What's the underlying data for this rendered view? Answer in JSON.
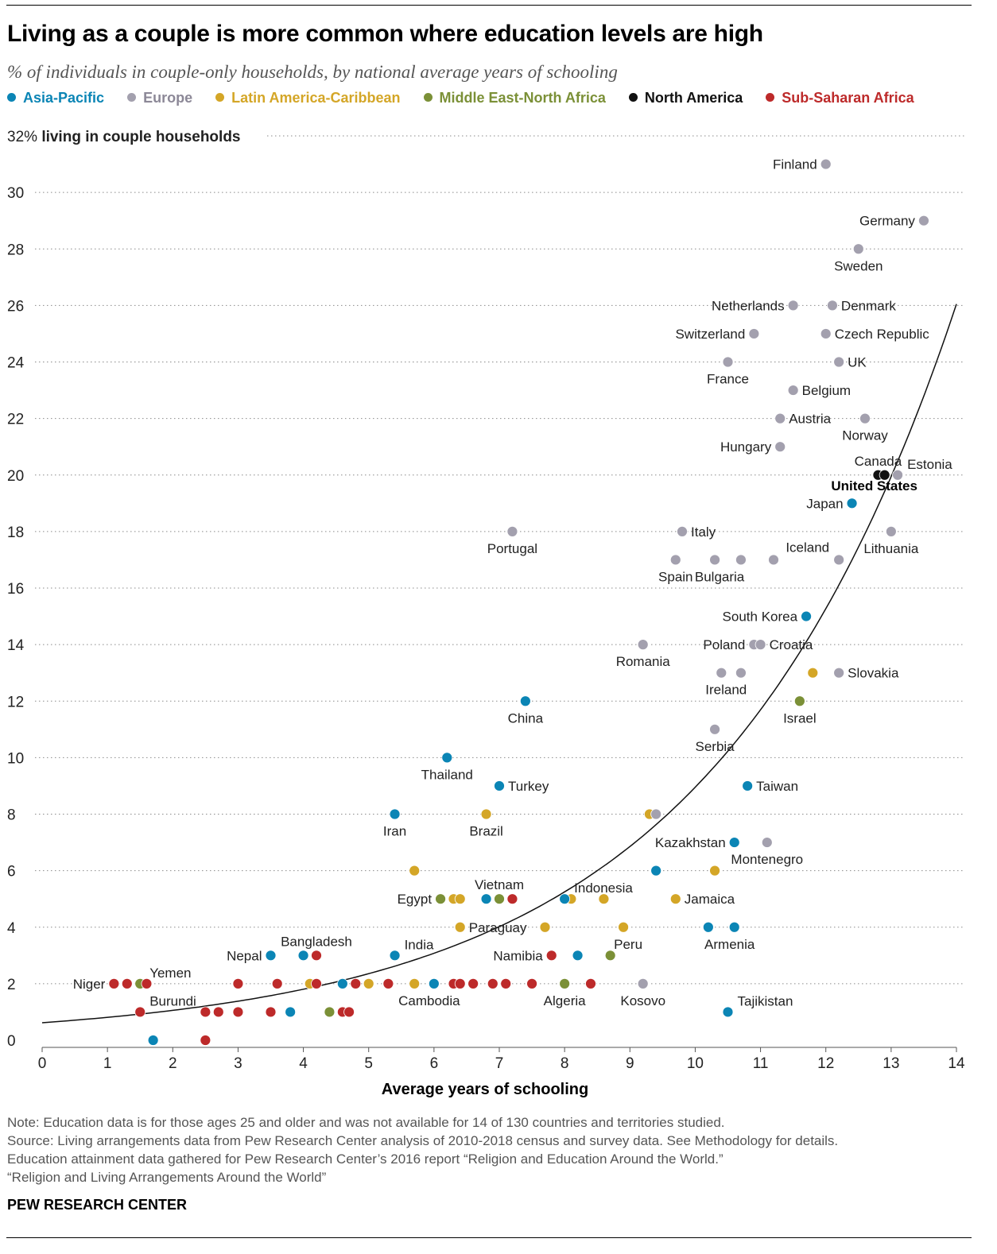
{
  "title": "Living as a couple is more common where education levels are high",
  "subtitle": "% of individuals in couple-only households, by national average years of schooling",
  "colors": {
    "asia": "#0b85b5",
    "europe": "#a3a0ae",
    "latam": "#d4a627",
    "mena": "#7b9037",
    "namerica": "#111111",
    "africa": "#bd2a2a"
  },
  "legend": [
    {
      "key": "asia",
      "label": "Asia-Pacific"
    },
    {
      "key": "europe",
      "label": "Europe"
    },
    {
      "key": "latam",
      "label": "Latin America-Caribbean"
    },
    {
      "key": "mena",
      "label": "Middle East-North Africa"
    },
    {
      "key": "namerica",
      "label": "North America"
    },
    {
      "key": "africa",
      "label": "Sub-Saharan Africa"
    }
  ],
  "chart_data": {
    "type": "scatter",
    "xlabel": "Average years of schooling",
    "ylabel": "living in couple households",
    "top_tick_label": "32%",
    "xlim": [
      0,
      14
    ],
    "ylim": [
      0,
      32
    ],
    "x_ticks": [
      "0",
      "1",
      "2",
      "3",
      "4",
      "5",
      "6",
      "7",
      "8",
      "9",
      "10",
      "11",
      "12",
      "13",
      "14"
    ],
    "y_ticks": [
      "0",
      "2",
      "4",
      "6",
      "8",
      "10",
      "12",
      "14",
      "16",
      "18",
      "20",
      "22",
      "24",
      "26",
      "28",
      "30"
    ],
    "trendline": "exponential",
    "points": [
      {
        "x": 12.0,
        "y": 31,
        "r": "europe",
        "label": "Finland",
        "ls": "l"
      },
      {
        "x": 13.5,
        "y": 29,
        "r": "europe",
        "label": "Germany",
        "ls": "l"
      },
      {
        "x": 12.5,
        "y": 28,
        "r": "europe",
        "label": "Sweden",
        "ls": "b"
      },
      {
        "x": 11.5,
        "y": 26,
        "r": "europe",
        "label": "Netherlands",
        "ls": "l"
      },
      {
        "x": 12.1,
        "y": 26,
        "r": "europe",
        "label": "Denmark",
        "ls": "r"
      },
      {
        "x": 10.9,
        "y": 25,
        "r": "europe",
        "label": "Switzerland",
        "ls": "l"
      },
      {
        "x": 12.0,
        "y": 25,
        "r": "europe",
        "label": "Czech Republic",
        "ls": "r"
      },
      {
        "x": 10.5,
        "y": 24,
        "r": "europe",
        "label": "France",
        "ls": "b"
      },
      {
        "x": 12.2,
        "y": 24,
        "r": "europe",
        "label": "UK",
        "ls": "r"
      },
      {
        "x": 11.5,
        "y": 23,
        "r": "europe",
        "label": "Belgium",
        "ls": "r"
      },
      {
        "x": 11.3,
        "y": 22,
        "r": "europe",
        "label": "Austria",
        "ls": "r"
      },
      {
        "x": 12.6,
        "y": 22,
        "r": "europe",
        "label": "Norway",
        "ls": "b"
      },
      {
        "x": 11.3,
        "y": 21,
        "r": "europe",
        "label": "Hungary",
        "ls": "l"
      },
      {
        "x": 12.8,
        "y": 20,
        "r": "namerica",
        "label": "Canada",
        "ls": "t"
      },
      {
        "x": 12.9,
        "y": 20,
        "r": "namerica",
        "label": "United States",
        "ls": "bb"
      },
      {
        "x": 13.1,
        "y": 20,
        "r": "europe",
        "label": "Estonia",
        "ls": "tr"
      },
      {
        "x": 12.4,
        "y": 19,
        "r": "asia",
        "label": "Japan",
        "ls": "l"
      },
      {
        "x": 7.2,
        "y": 18,
        "r": "europe",
        "label": "Portugal",
        "ls": "b"
      },
      {
        "x": 9.8,
        "y": 18,
        "r": "europe",
        "label": "Italy",
        "ls": "r"
      },
      {
        "x": 13.0,
        "y": 18,
        "r": "europe",
        "label": "Lithuania",
        "ls": "b"
      },
      {
        "x": 9.7,
        "y": 17,
        "r": "europe",
        "label": "Spain",
        "ls": "b"
      },
      {
        "x": 10.3,
        "y": 17,
        "r": "europe",
        "label": "Bulgaria",
        "ls": "br"
      },
      {
        "x": 10.7,
        "y": 17,
        "r": "europe",
        "label": "",
        "ls": ""
      },
      {
        "x": 11.2,
        "y": 17,
        "r": "europe",
        "label": "",
        "ls": ""
      },
      {
        "x": 12.2,
        "y": 17,
        "r": "europe",
        "label": "Iceland",
        "ls": "tl"
      },
      {
        "x": 11.7,
        "y": 15,
        "r": "asia",
        "label": "South Korea",
        "ls": "l"
      },
      {
        "x": 9.2,
        "y": 14,
        "r": "europe",
        "label": "Romania",
        "ls": "b"
      },
      {
        "x": 10.9,
        "y": 14,
        "r": "europe",
        "label": "Poland",
        "ls": "l"
      },
      {
        "x": 11.0,
        "y": 14,
        "r": "europe",
        "label": "Croatia",
        "ls": "r"
      },
      {
        "x": 10.4,
        "y": 13,
        "r": "europe",
        "label": "Ireland",
        "ls": "br"
      },
      {
        "x": 10.7,
        "y": 13,
        "r": "europe",
        "label": "",
        "ls": ""
      },
      {
        "x": 11.8,
        "y": 13,
        "r": "latam",
        "label": "",
        "ls": ""
      },
      {
        "x": 12.2,
        "y": 13,
        "r": "europe",
        "label": "Slovakia",
        "ls": "r"
      },
      {
        "x": 7.4,
        "y": 12,
        "r": "asia",
        "label": "China",
        "ls": "b"
      },
      {
        "x": 11.6,
        "y": 12,
        "r": "mena",
        "label": "Israel",
        "ls": "b"
      },
      {
        "x": 10.3,
        "y": 11,
        "r": "europe",
        "label": "Serbia",
        "ls": "b"
      },
      {
        "x": 6.2,
        "y": 10,
        "r": "asia",
        "label": "Thailand",
        "ls": "b"
      },
      {
        "x": 7.0,
        "y": 9,
        "r": "asia",
        "label": "Turkey",
        "ls": "r"
      },
      {
        "x": 10.8,
        "y": 9,
        "r": "asia",
        "label": "Taiwan",
        "ls": "r"
      },
      {
        "x": 5.4,
        "y": 8,
        "r": "asia",
        "label": "Iran",
        "ls": "b"
      },
      {
        "x": 6.8,
        "y": 8,
        "r": "latam",
        "label": "Brazil",
        "ls": "b"
      },
      {
        "x": 9.3,
        "y": 8,
        "r": "latam",
        "label": "",
        "ls": ""
      },
      {
        "x": 9.4,
        "y": 8,
        "r": "europe",
        "label": "",
        "ls": ""
      },
      {
        "x": 10.6,
        "y": 7,
        "r": "asia",
        "label": "Kazakhstan",
        "ls": "l"
      },
      {
        "x": 11.1,
        "y": 7,
        "r": "europe",
        "label": "Montenegro",
        "ls": "b"
      },
      {
        "x": 5.7,
        "y": 6,
        "r": "latam",
        "label": "",
        "ls": ""
      },
      {
        "x": 9.4,
        "y": 6,
        "r": "latam",
        "label": "",
        "ls": ""
      },
      {
        "x": 9.4,
        "y": 6,
        "r": "asia",
        "label": "",
        "ls": ""
      },
      {
        "x": 10.3,
        "y": 6,
        "r": "latam",
        "label": "",
        "ls": ""
      },
      {
        "x": 6.1,
        "y": 5,
        "r": "mena",
        "label": "Egypt",
        "ls": "l"
      },
      {
        "x": 6.3,
        "y": 5,
        "r": "latam",
        "label": "",
        "ls": ""
      },
      {
        "x": 6.4,
        "y": 5,
        "r": "latam",
        "label": "",
        "ls": ""
      },
      {
        "x": 6.8,
        "y": 5,
        "r": "asia",
        "label": "",
        "ls": ""
      },
      {
        "x": 7.0,
        "y": 5,
        "r": "mena",
        "label": "Vietnam",
        "ls": "t"
      },
      {
        "x": 7.2,
        "y": 5,
        "r": "africa",
        "label": "",
        "ls": ""
      },
      {
        "x": 8.1,
        "y": 5,
        "r": "latam",
        "label": "",
        "ls": ""
      },
      {
        "x": 8.0,
        "y": 5,
        "r": "asia",
        "label": "Indonesia",
        "ls": "tr"
      },
      {
        "x": 8.6,
        "y": 5,
        "r": "latam",
        "label": "",
        "ls": ""
      },
      {
        "x": 9.7,
        "y": 5,
        "r": "latam",
        "label": "Jamaica",
        "ls": "r"
      },
      {
        "x": 6.4,
        "y": 4,
        "r": "latam",
        "label": "Paraguay",
        "ls": "r"
      },
      {
        "x": 7.7,
        "y": 4,
        "r": "latam",
        "label": "",
        "ls": ""
      },
      {
        "x": 8.9,
        "y": 4,
        "r": "latam",
        "label": "Peru",
        "ls": "br"
      },
      {
        "x": 10.2,
        "y": 4,
        "r": "asia",
        "label": "",
        "ls": ""
      },
      {
        "x": 10.6,
        "y": 4,
        "r": "asia",
        "label": "Armenia",
        "ls": "bl"
      },
      {
        "x": 3.5,
        "y": 3,
        "r": "africa",
        "label": "",
        "ls": ""
      },
      {
        "x": 3.5,
        "y": 3,
        "r": "asia",
        "label": "Nepal",
        "ls": "l"
      },
      {
        "x": 4.0,
        "y": 3,
        "r": "asia",
        "label": "",
        "ls": ""
      },
      {
        "x": 4.2,
        "y": 3,
        "r": "africa",
        "label": "Bangladesh",
        "ls": "t"
      },
      {
        "x": 5.4,
        "y": 3,
        "r": "asia",
        "label": "India",
        "ls": "tr"
      },
      {
        "x": 7.8,
        "y": 3,
        "r": "africa",
        "label": "Namibia",
        "ls": "l"
      },
      {
        "x": 8.2,
        "y": 3,
        "r": "africa",
        "label": "",
        "ls": ""
      },
      {
        "x": 8.2,
        "y": 3,
        "r": "asia",
        "label": "",
        "ls": ""
      },
      {
        "x": 8.7,
        "y": 3,
        "r": "mena",
        "label": "",
        "ls": ""
      },
      {
        "x": 1.1,
        "y": 2,
        "r": "africa",
        "label": "Niger",
        "ls": "l"
      },
      {
        "x": 1.3,
        "y": 2,
        "r": "africa",
        "label": "",
        "ls": ""
      },
      {
        "x": 1.5,
        "y": 2,
        "r": "mena",
        "label": "Yemen",
        "ls": "tr"
      },
      {
        "x": 1.6,
        "y": 2,
        "r": "africa",
        "label": "",
        "ls": ""
      },
      {
        "x": 3.0,
        "y": 2,
        "r": "africa",
        "label": "",
        "ls": ""
      },
      {
        "x": 3.6,
        "y": 2,
        "r": "africa",
        "label": "",
        "ls": ""
      },
      {
        "x": 4.1,
        "y": 2,
        "r": "latam",
        "label": "",
        "ls": ""
      },
      {
        "x": 4.2,
        "y": 2,
        "r": "africa",
        "label": "",
        "ls": ""
      },
      {
        "x": 4.6,
        "y": 2,
        "r": "asia",
        "label": "",
        "ls": ""
      },
      {
        "x": 4.8,
        "y": 2,
        "r": "africa",
        "label": "",
        "ls": ""
      },
      {
        "x": 5.0,
        "y": 2,
        "r": "latam",
        "label": "",
        "ls": ""
      },
      {
        "x": 5.3,
        "y": 2,
        "r": "africa",
        "label": "",
        "ls": ""
      },
      {
        "x": 5.7,
        "y": 2,
        "r": "latam",
        "label": "",
        "ls": ""
      },
      {
        "x": 6.0,
        "y": 2,
        "r": "asia",
        "label": "Cambodia",
        "ls": "bl"
      },
      {
        "x": 6.3,
        "y": 2,
        "r": "africa",
        "label": "",
        "ls": ""
      },
      {
        "x": 6.4,
        "y": 2,
        "r": "africa",
        "label": "",
        "ls": ""
      },
      {
        "x": 6.6,
        "y": 2,
        "r": "africa",
        "label": "",
        "ls": ""
      },
      {
        "x": 6.9,
        "y": 2,
        "r": "africa",
        "label": "",
        "ls": ""
      },
      {
        "x": 7.1,
        "y": 2,
        "r": "africa",
        "label": "",
        "ls": ""
      },
      {
        "x": 7.5,
        "y": 2,
        "r": "africa",
        "label": "",
        "ls": ""
      },
      {
        "x": 8.0,
        "y": 2,
        "r": "mena",
        "label": "Algeria",
        "ls": "b"
      },
      {
        "x": 8.4,
        "y": 2,
        "r": "africa",
        "label": "",
        "ls": ""
      },
      {
        "x": 9.2,
        "y": 2,
        "r": "europe",
        "label": "Kosovo",
        "ls": "b"
      },
      {
        "x": 1.5,
        "y": 1,
        "r": "africa",
        "label": "Burundi",
        "ls": "tr"
      },
      {
        "x": 2.5,
        "y": 1,
        "r": "africa",
        "label": "",
        "ls": ""
      },
      {
        "x": 2.7,
        "y": 1,
        "r": "africa",
        "label": "",
        "ls": ""
      },
      {
        "x": 3.0,
        "y": 1,
        "r": "africa",
        "label": "",
        "ls": ""
      },
      {
        "x": 3.5,
        "y": 1,
        "r": "africa",
        "label": "",
        "ls": ""
      },
      {
        "x": 3.8,
        "y": 1,
        "r": "asia",
        "label": "",
        "ls": ""
      },
      {
        "x": 4.4,
        "y": 1,
        "r": "mena",
        "label": "",
        "ls": ""
      },
      {
        "x": 4.6,
        "y": 1,
        "r": "africa",
        "label": "",
        "ls": ""
      },
      {
        "x": 4.7,
        "y": 1,
        "r": "africa",
        "label": "",
        "ls": ""
      },
      {
        "x": 10.5,
        "y": 1,
        "r": "asia",
        "label": "Tajikistan",
        "ls": "tr"
      },
      {
        "x": 1.7,
        "y": 0,
        "r": "asia",
        "label": "",
        "ls": ""
      },
      {
        "x": 2.5,
        "y": 0,
        "r": "africa",
        "label": "",
        "ls": ""
      }
    ]
  },
  "notes": {
    "line1": "Note: Education data is for those ages 25 and older and was not available for 14 of 130 countries and territories studied.",
    "line2": "Source: Living arrangements data from Pew Research Center analysis of 2010-2018 census and survey data. See Methodology for details.",
    "line3": "Education attainment data gathered for Pew Research Center’s 2016 report “Religion and Education Around the World.”",
    "line4": "“Religion and Living Arrangements Around the World”"
  },
  "brand": "PEW RESEARCH CENTER"
}
